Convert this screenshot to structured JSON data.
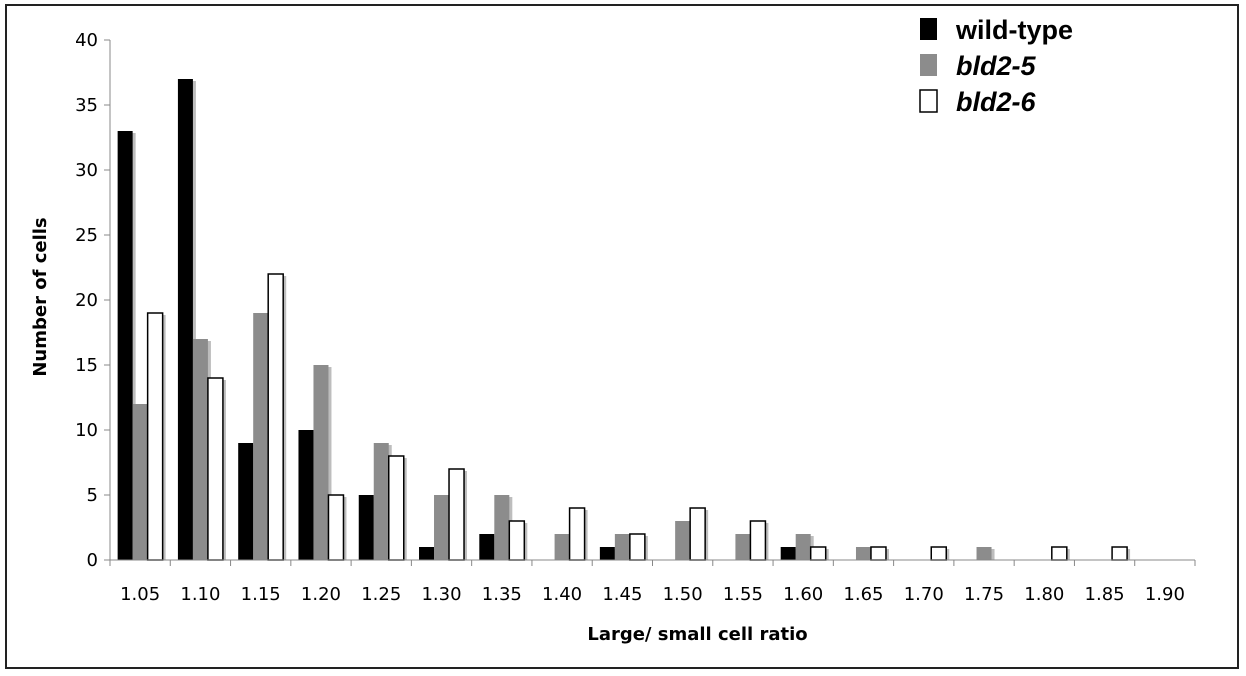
{
  "chart_data": {
    "type": "bar",
    "title": "",
    "xlabel": "Large/ small cell ratio",
    "ylabel": "Number of cells",
    "ylim": [
      0,
      40
    ],
    "yticks": [
      "0",
      "5",
      "10",
      "15",
      "20",
      "25",
      "30",
      "35",
      "40"
    ],
    "categories": [
      "1.05",
      "1.10",
      "1.15",
      "1.20",
      "1.25",
      "1.30",
      "1.35",
      "1.40",
      "1.45",
      "1.50",
      "1.55",
      "1.60",
      "1.65",
      "1.70",
      "1.75",
      "1.80",
      "1.85",
      "1.90"
    ],
    "series": [
      {
        "name": "wild-type",
        "color": "#000000",
        "values": [
          33,
          37,
          9,
          10,
          5,
          1,
          2,
          0,
          1,
          0,
          0,
          1,
          0,
          0,
          0,
          0,
          0,
          0
        ]
      },
      {
        "name": "bld2-5",
        "color": "#8c8c8c",
        "values": [
          12,
          17,
          19,
          15,
          9,
          5,
          5,
          2,
          2,
          3,
          2,
          2,
          1,
          0,
          1,
          0,
          0,
          0
        ]
      },
      {
        "name": "bld2-6",
        "color": "#ffffff",
        "values": [
          19,
          14,
          22,
          5,
          8,
          7,
          3,
          4,
          2,
          4,
          3,
          1,
          1,
          1,
          0,
          1,
          1,
          0
        ]
      }
    ],
    "legend_position": "top-right",
    "grid": false
  }
}
